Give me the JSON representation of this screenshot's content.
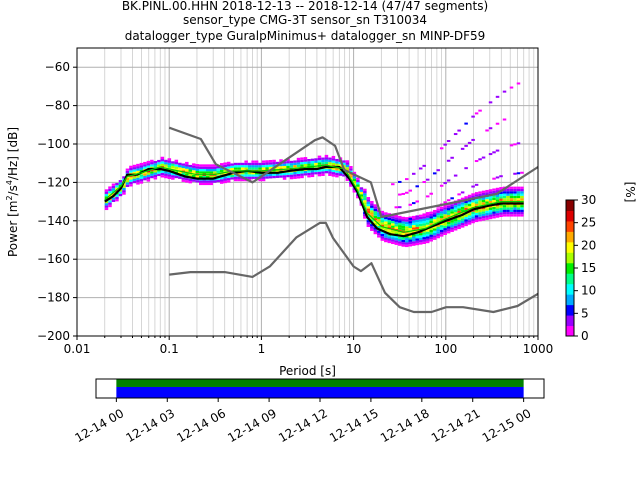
{
  "title_lines": [
    "BK.PINL.00.HHN   2018-12-13 -- 2018-12-14  (47/47 segments)",
    "sensor_type CMG-3T sensor_sn T310034",
    "datalogger_type GuralpMinimus+ datalogger_sn MINP-DF59"
  ],
  "chart_data": {
    "type": "heatmap",
    "title": "BK.PINL.00.HHN   2018-12-13 -- 2018-12-14  (47/47 segments)",
    "xlabel": "Period [s]",
    "ylabel": "Power [m²/s⁴/Hz] [dB]",
    "ylabel_parts": [
      "Power [m",
      "2",
      "/s",
      "4",
      "/Hz] [dB]"
    ],
    "xscale": "log",
    "xlim": [
      0.01,
      1000
    ],
    "ylim": [
      -200,
      -50
    ],
    "xticks": [
      0.01,
      0.1,
      1,
      10,
      100,
      1000
    ],
    "xtick_labels": [
      "0.01",
      "0.1",
      "1",
      "10",
      "100",
      "1000"
    ],
    "yticks": [
      -200,
      -180,
      -160,
      -140,
      -120,
      -100,
      -80,
      -60
    ],
    "ytick_labels": [
      "−200",
      "−180",
      "−160",
      "−140",
      "−120",
      "−100",
      "−80",
      "−60"
    ],
    "grid": true,
    "colorbar": {
      "label": "[%]",
      "range": [
        0,
        30
      ],
      "ticks": [
        0,
        5,
        10,
        15,
        20,
        25,
        30
      ],
      "tick_labels": [
        "0",
        "5",
        "10",
        "15",
        "20",
        "25",
        "30"
      ],
      "colormap": [
        "#ff00ff",
        "#9900ff",
        "#0000ff",
        "#00aaff",
        "#00ffff",
        "#00ff88",
        "#00ee00",
        "#aaff00",
        "#ffff00",
        "#ffaa00",
        "#ff4400",
        "#dd0000",
        "#880000"
      ]
    },
    "series": [
      {
        "style": "mean",
        "color": "#000000",
        "points": [
          [
            0.02,
            -130
          ],
          [
            0.025,
            -127
          ],
          [
            0.03,
            -123
          ],
          [
            0.035,
            -116
          ],
          [
            0.045,
            -116
          ],
          [
            0.06,
            -113
          ],
          [
            0.08,
            -113
          ],
          [
            0.1,
            -114
          ],
          [
            0.15,
            -117
          ],
          [
            0.2,
            -118
          ],
          [
            0.3,
            -118
          ],
          [
            0.5,
            -115
          ],
          [
            0.7,
            -114
          ],
          [
            1,
            -115
          ],
          [
            1.5,
            -115
          ],
          [
            2,
            -114
          ],
          [
            3,
            -113
          ],
          [
            4,
            -113
          ],
          [
            5,
            -112
          ],
          [
            7,
            -112
          ],
          [
            9,
            -118
          ],
          [
            11,
            -125
          ],
          [
            14,
            -138
          ],
          [
            18,
            -144
          ],
          [
            25,
            -147
          ],
          [
            35,
            -148
          ],
          [
            50,
            -146
          ],
          [
            70,
            -143
          ],
          [
            100,
            -140
          ],
          [
            150,
            -137
          ],
          [
            200,
            -134
          ],
          [
            300,
            -132
          ],
          [
            400,
            -131
          ],
          [
            700,
            -131
          ]
        ]
      },
      {
        "style": "mode",
        "color": "#00cc00",
        "points": [
          [
            0.02,
            -129
          ],
          [
            0.03,
            -122
          ],
          [
            0.035,
            -117
          ],
          [
            0.05,
            -115
          ],
          [
            0.08,
            -112
          ],
          [
            0.1,
            -113
          ],
          [
            0.2,
            -116
          ],
          [
            0.3,
            -116
          ],
          [
            0.5,
            -114
          ],
          [
            1,
            -114
          ],
          [
            2,
            -113
          ],
          [
            5,
            -111
          ],
          [
            8,
            -113
          ],
          [
            11,
            -124
          ],
          [
            14,
            -136
          ],
          [
            20,
            -143
          ],
          [
            35,
            -146
          ],
          [
            60,
            -144
          ],
          [
            100,
            -139
          ],
          [
            200,
            -133
          ],
          [
            400,
            -130
          ],
          [
            700,
            -130
          ]
        ]
      },
      {
        "style": "nlnm",
        "color": "#666666",
        "points": [
          [
            0.1,
            -168
          ],
          [
            0.17,
            -166.7
          ],
          [
            0.4,
            -166.7
          ],
          [
            0.8,
            -169.2
          ],
          [
            1.24,
            -163.7
          ],
          [
            2.4,
            -148.6
          ],
          [
            4.3,
            -141.1
          ],
          [
            5,
            -141.1
          ],
          [
            6,
            -149
          ],
          [
            10,
            -163.8
          ],
          [
            12,
            -166.2
          ],
          [
            15.6,
            -162.1
          ],
          [
            21.9,
            -177.5
          ],
          [
            31.6,
            -185
          ],
          [
            45,
            -187.5
          ],
          [
            70,
            -187.5
          ],
          [
            101,
            -185
          ],
          [
            154,
            -185
          ],
          [
            328,
            -187.5
          ],
          [
            600,
            -184.4
          ],
          [
            1000,
            -178
          ]
        ]
      },
      {
        "style": "nhnm",
        "color": "#666666",
        "points": [
          [
            0.1,
            -91.5
          ],
          [
            0.22,
            -97.4
          ],
          [
            0.32,
            -110.5
          ],
          [
            0.8,
            -120
          ],
          [
            3.8,
            -98
          ],
          [
            4.6,
            -96.5
          ],
          [
            6.3,
            -101
          ],
          [
            7.9,
            -113.5
          ],
          [
            15.4,
            -120
          ],
          [
            20,
            -138
          ],
          [
            354.8,
            -126
          ],
          [
            1000,
            -112
          ]
        ]
      }
    ],
    "annotations": []
  },
  "timeline": {
    "tick_labels": [
      "12-14 00",
      "12-14 03",
      "12-14 06",
      "12-14 09",
      "12-14 12",
      "12-14 15",
      "12-14 18",
      "12-14 21",
      "12-15 00"
    ],
    "band_colors": [
      "#008000",
      "#0000ff"
    ],
    "coverage_start_hour": 0,
    "coverage_end_hour": 24,
    "range_hours": [
      -1.2,
      25.2
    ]
  }
}
